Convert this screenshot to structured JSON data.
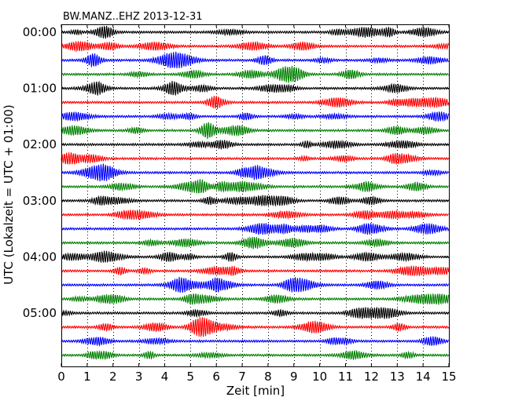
{
  "chart_data": {
    "type": "line",
    "title": "BW.MANZ..EHZ 2013-12-31",
    "xlabel": "Zeit  [min]",
    "ylabel": "UTC (Lokalzeit = UTC + 01:00)",
    "xlim": [
      0,
      15
    ],
    "x_ticks": [
      "0",
      "1",
      "2",
      "3",
      "4",
      "5",
      "6",
      "7",
      "8",
      "9",
      "10",
      "11",
      "12",
      "13",
      "14",
      "15"
    ],
    "y_tick_labels": [
      "00:00",
      "01:00",
      "02:00",
      "03:00",
      "04:00",
      "05:00"
    ],
    "rows_per_hour": 4,
    "minutes_per_row": 15,
    "trace_colors": [
      "#000000",
      "#ff0000",
      "#0000ff",
      "#008000"
    ],
    "grid": "vertical dotted lines at each minute",
    "series": [
      {
        "start": "00:00"
      },
      {
        "start": "00:15"
      },
      {
        "start": "00:30"
      },
      {
        "start": "00:45"
      },
      {
        "start": "01:00"
      },
      {
        "start": "01:15"
      },
      {
        "start": "01:30"
      },
      {
        "start": "01:45"
      },
      {
        "start": "02:00"
      },
      {
        "start": "02:15"
      },
      {
        "start": "02:30"
      },
      {
        "start": "02:45"
      },
      {
        "start": "03:00"
      },
      {
        "start": "03:15"
      },
      {
        "start": "03:30"
      },
      {
        "start": "03:45"
      },
      {
        "start": "04:00"
      },
      {
        "start": "04:15"
      },
      {
        "start": "04:30"
      },
      {
        "start": "04:45"
      },
      {
        "start": "05:00"
      },
      {
        "start": "05:15"
      },
      {
        "start": "05:30"
      },
      {
        "start": "05:45"
      }
    ]
  }
}
